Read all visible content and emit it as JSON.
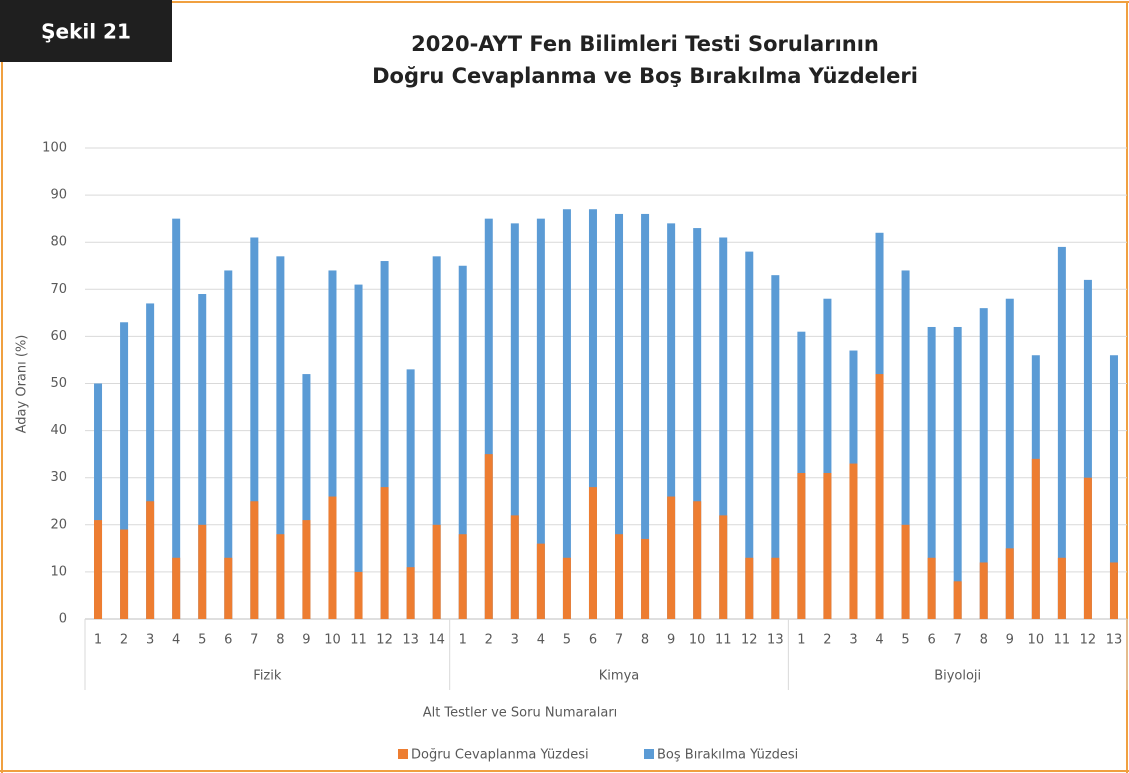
{
  "badge": "Şekil 21",
  "chart_data": {
    "type": "bar",
    "title": [
      "2020-AYT Fen Bilimleri Testi Sorularının",
      "Doğru Cevaplanma ve Boş Bırakılma Yüzdeleri"
    ],
    "x_label": "Alt Testler ve Soru Numaraları",
    "y_label": "Aday Oranı (%)",
    "groups": [
      {
        "name": "Fizik",
        "categories": [
          "1",
          "2",
          "3",
          "4",
          "5",
          "6",
          "7",
          "8",
          "9",
          "10",
          "11",
          "12",
          "13",
          "14"
        ]
      },
      {
        "name": "Kimya",
        "categories": [
          "1",
          "2",
          "3",
          "4",
          "5",
          "6",
          "7",
          "8",
          "9",
          "10",
          "11",
          "12",
          "13"
        ]
      },
      {
        "name": "Biyoloji",
        "categories": [
          "1",
          "2",
          "3",
          "4",
          "5",
          "6",
          "7",
          "8",
          "9",
          "10",
          "11",
          "12",
          "13"
        ]
      }
    ],
    "series": [
      {
        "name": "Boş Bırakılma Yüzdesi",
        "color": "#5b9bd5",
        "values": [
          50,
          63,
          67,
          85,
          69,
          74,
          81,
          77,
          52,
          74,
          71,
          76,
          53,
          77,
          75,
          85,
          84,
          85,
          87,
          87,
          86,
          86,
          84,
          83,
          81,
          78,
          73,
          61,
          68,
          57,
          82,
          74,
          62,
          62,
          66,
          68,
          56,
          79,
          72,
          56
        ]
      },
      {
        "name": "Doğru Cevaplanma Yüzdesi",
        "color": "#ed7d31",
        "values": [
          21,
          19,
          25,
          13,
          20,
          13,
          25,
          18,
          21,
          26,
          10,
          28,
          11,
          20,
          18,
          35,
          22,
          16,
          13,
          28,
          18,
          17,
          26,
          25,
          22,
          13,
          13,
          31,
          31,
          33,
          52,
          20,
          13,
          8,
          12,
          15,
          34,
          13,
          30,
          12
        ]
      }
    ],
    "ylim": [
      0,
      100
    ],
    "yticks": [
      0,
      10,
      20,
      30,
      40,
      50,
      60,
      70,
      80,
      90,
      100
    ],
    "grid": true,
    "legend": "bottom"
  }
}
